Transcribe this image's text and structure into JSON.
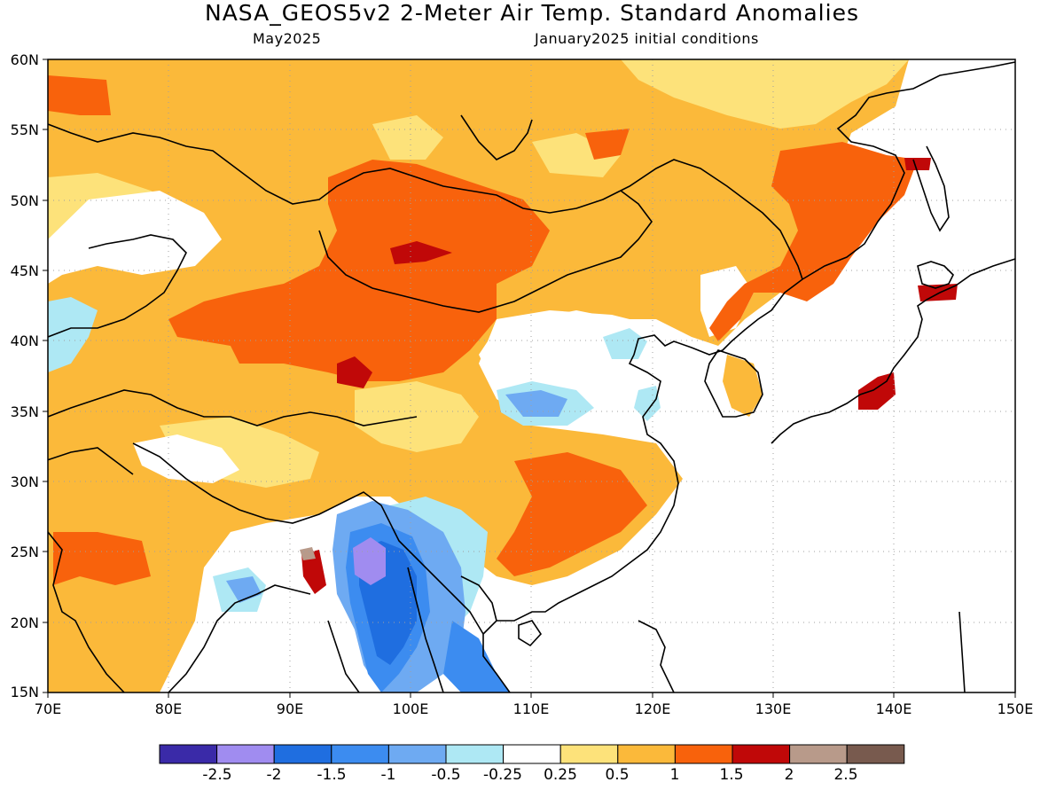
{
  "title": "NASA_GEOS5v2 2-Meter Air Temp. Standard Anomalies",
  "subtitle_left": "May2025",
  "subtitle_right": "January2025 initial conditions",
  "map": {
    "lat_labels": [
      "60N",
      "55N",
      "50N",
      "45N",
      "40N",
      "35N",
      "30N",
      "25N",
      "20N",
      "15N"
    ],
    "lon_labels": [
      "70E",
      "80E",
      "90E",
      "100E",
      "110E",
      "120E",
      "130E",
      "140E",
      "150E"
    ],
    "lon_range": [
      70,
      150
    ],
    "lat_range": [
      15,
      60
    ],
    "grid": "dotted"
  },
  "colorbar": {
    "colors": [
      "#3a2aa8",
      "#a08cf0",
      "#1f6ee0",
      "#3c8cf0",
      "#6eaaf2",
      "#aee8f4",
      "#ffffff",
      "#fde27a",
      "#fbb93a",
      "#f8620c",
      "#c00808",
      "#b89a8a",
      "#785a4e"
    ],
    "labels": [
      "-2.5",
      "-2",
      "-1.5",
      "-1",
      "-0.5",
      "-0.25",
      "0.25",
      "0.5",
      "1",
      "1.5",
      "2",
      "2.5"
    ]
  }
}
